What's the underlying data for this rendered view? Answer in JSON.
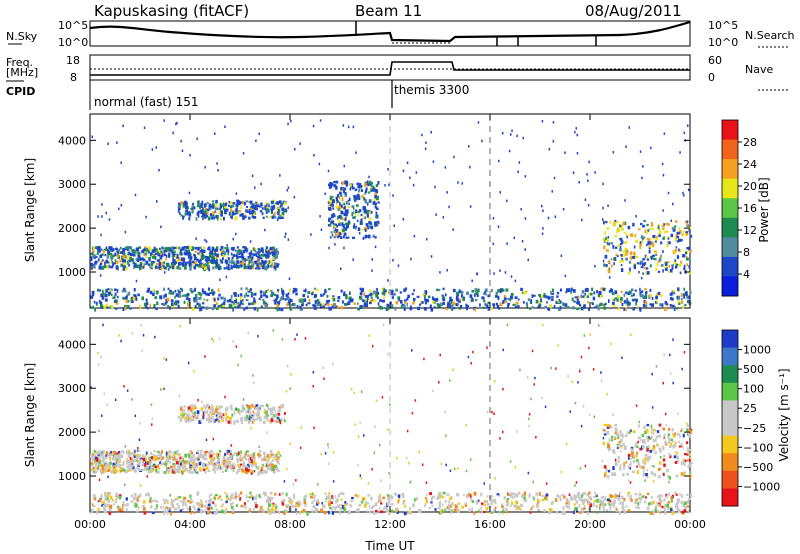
{
  "header": {
    "station": "Kapuskasing (fitACF)",
    "beam": "Beam 11",
    "date": "08/Aug/2011"
  },
  "aux_panels": {
    "nsky_label": "N.Sky",
    "nsky_ticks": [
      "10^5",
      "10^0"
    ],
    "nsearch_label": "N.Search",
    "nsearch_ticks": [
      "10^5",
      "10^0"
    ],
    "freq_label_1": "Freq.",
    "freq_label_2": "[MHz]",
    "freq_ticks": [
      "18",
      "8"
    ],
    "nave_label": "Nave",
    "nave_ticks": [
      "60",
      "0"
    ],
    "cpid_label": "CPID",
    "cpid_segments": [
      {
        "label": "normal (fast) 151",
        "start_hour": 0,
        "end_hour": 12
      },
      {
        "label": "themis 3300",
        "start_hour": 12,
        "end_hour": 24
      }
    ]
  },
  "chart_data": [
    {
      "type": "heatmap",
      "panel": "power",
      "title": "",
      "xlabel": "",
      "ylabel": "Slant Range [km]",
      "x_ticks": [
        0,
        4,
        8,
        12,
        16,
        20,
        24
      ],
      "y_ticks": [
        1000,
        2000,
        3000,
        4000
      ],
      "xlim": [
        0,
        24
      ],
      "ylim": [
        180,
        4600
      ],
      "colorbar_label": "Power [dB]",
      "colorbar_ticks": [
        "28",
        "24",
        "20",
        "16",
        "12",
        "8",
        "4"
      ],
      "colorbar_colors": [
        "#e8141a",
        "#f0641e",
        "#f5a01e",
        "#e6e61a",
        "#5ac846",
        "#1e8c50",
        "#508ca0",
        "#1e46c8",
        "#0a1edc"
      ],
      "features": [
        {
          "name": "band-1300",
          "x": [
            0.0,
            7.5
          ],
          "y": [
            1100,
            1600
          ],
          "value_db": 14
        },
        {
          "name": "band-2400",
          "x": [
            3.5,
            7.8
          ],
          "y": [
            2250,
            2650
          ],
          "value_db": 8
        },
        {
          "name": "arc-10h",
          "x": [
            9.5,
            11.5
          ],
          "y": [
            1800,
            3100
          ],
          "value_db": 6
        },
        {
          "name": "near-range",
          "x": [
            0.0,
            24.0
          ],
          "y": [
            180,
            650
          ],
          "value_db": 12
        },
        {
          "name": "evening-patch",
          "x": [
            20.5,
            24.0
          ],
          "y": [
            1000,
            2200
          ],
          "value_db": 20
        }
      ]
    },
    {
      "type": "heatmap",
      "panel": "velocity",
      "title": "",
      "xlabel": "Time UT",
      "ylabel": "Slant Range [km]",
      "x_ticks": [
        0,
        4,
        8,
        12,
        16,
        20,
        24
      ],
      "x_tick_labels": [
        "00:00",
        "04:00",
        "08:00",
        "12:00",
        "16:00",
        "20:00",
        "00:00"
      ],
      "y_ticks": [
        1000,
        2000,
        3000,
        4000
      ],
      "xlim": [
        0,
        24
      ],
      "ylim": [
        180,
        4600
      ],
      "colorbar_label": "Velocity [m s⁻¹]",
      "colorbar_ticks": [
        "1000",
        "500",
        "100",
        "25",
        "−25",
        "−100",
        "−500",
        "−1000"
      ],
      "colorbar_colors": [
        "#1e3cc8",
        "#3c78c8",
        "#1e8c50",
        "#5ac846",
        "#c8c8c8",
        "#c8c8c8",
        "#f5c81e",
        "#f08c1e",
        "#f0501e",
        "#e8141a"
      ],
      "features": [
        {
          "name": "band-1300",
          "x": [
            0.0,
            7.5
          ],
          "y": [
            1100,
            1600
          ],
          "value_ms": -25
        },
        {
          "name": "band-2400",
          "x": [
            3.5,
            7.8
          ],
          "y": [
            2250,
            2650
          ],
          "value_ms": 0
        },
        {
          "name": "near-range",
          "x": [
            0.0,
            24.0
          ],
          "y": [
            180,
            650
          ],
          "value_ms": 0
        },
        {
          "name": "evening-patch",
          "x": [
            20.5,
            24.0
          ],
          "y": [
            1000,
            2200
          ],
          "value_ms": 0
        }
      ]
    }
  ]
}
